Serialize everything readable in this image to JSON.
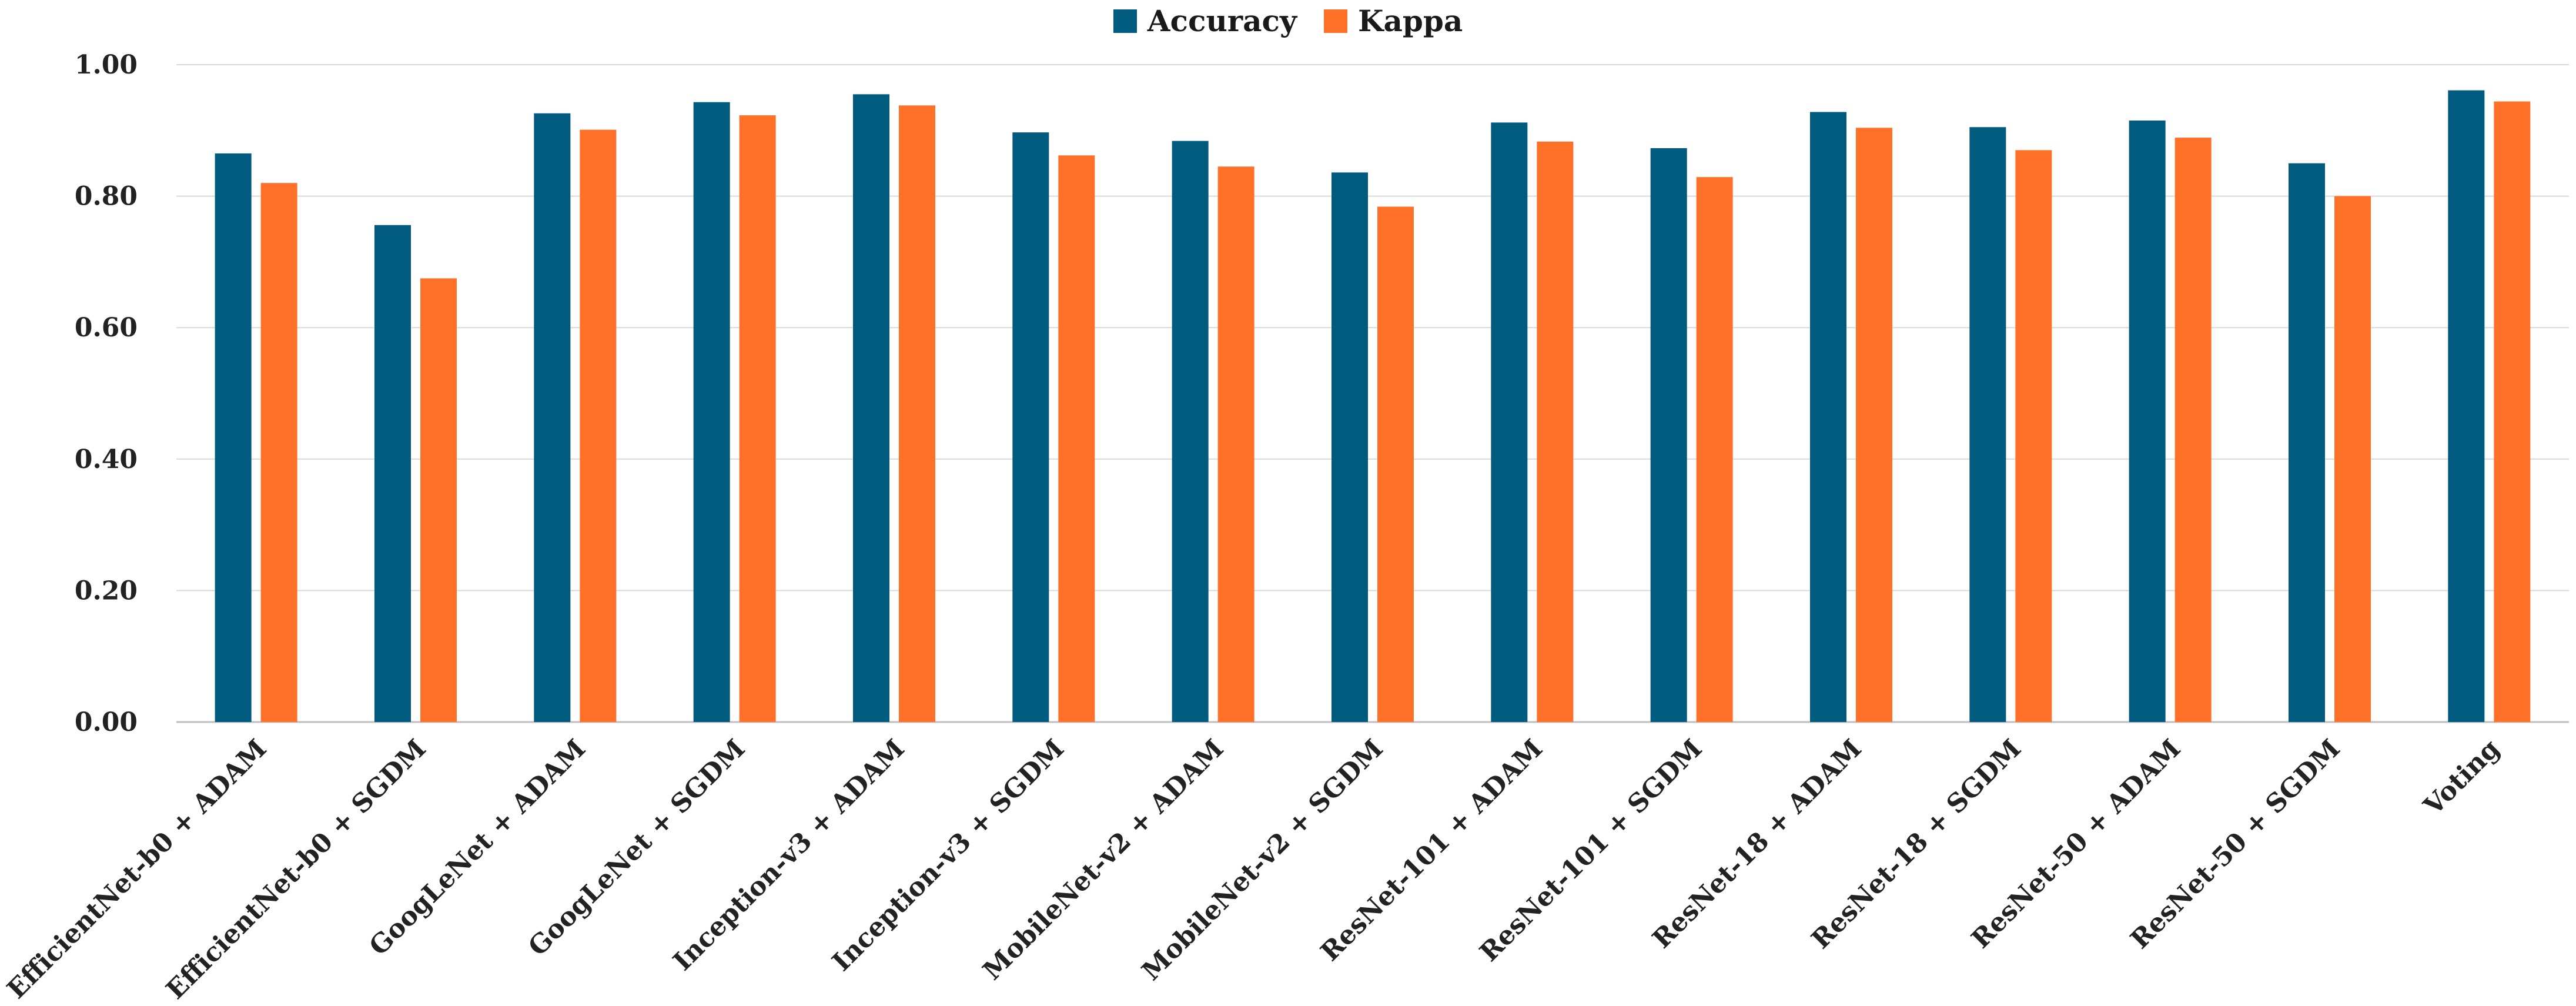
{
  "chart_data": {
    "type": "bar",
    "title": "",
    "xlabel": "",
    "ylabel": "",
    "ylim": [
      0,
      1
    ],
    "yticks": [
      "0.00",
      "0.20",
      "0.40",
      "0.60",
      "0.80",
      "1.00"
    ],
    "ytick_values": [
      0,
      0.2,
      0.4,
      0.6,
      0.8,
      1.0
    ],
    "grid": true,
    "legend_position": "top-center",
    "categories": [
      "EfficientNet-b0 + ADAM",
      "EfficientNet-b0 + SGDM",
      "GoogLeNet + ADAM",
      "GoogLeNet + SGDM",
      "Inception-v3 + ADAM",
      "Inception-v3 + SGDM",
      "MobileNet-v2 + ADAM",
      "MobileNet-v2 + SGDM",
      "ResNet-101 + ADAM",
      "ResNet-101 + SGDM",
      "ResNet-18 + ADAM",
      "ResNet-18 + SGDM",
      "ResNet-50 + ADAM",
      "ResNet-50 + SGDM",
      "Voting"
    ],
    "series": [
      {
        "name": "Accuracy",
        "color": "#005b7f",
        "values": [
          0.865,
          0.756,
          0.926,
          0.943,
          0.955,
          0.897,
          0.884,
          0.836,
          0.912,
          0.873,
          0.928,
          0.905,
          0.915,
          0.85,
          0.961
        ]
      },
      {
        "name": "Kappa",
        "color": "#ff7029",
        "values": [
          0.82,
          0.675,
          0.901,
          0.923,
          0.938,
          0.862,
          0.845,
          0.784,
          0.883,
          0.829,
          0.904,
          0.87,
          0.889,
          0.8,
          0.944
        ]
      }
    ]
  }
}
